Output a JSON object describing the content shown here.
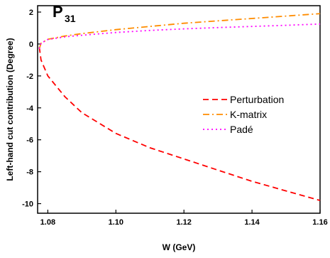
{
  "chart_data": {
    "type": "line",
    "title": "",
    "panel_label": {
      "main": "P",
      "sub": "31"
    },
    "xlabel": "W (GeV)",
    "ylabel": "Left-hand cut contribution (Degree)",
    "xlim": [
      1.077,
      1.16
    ],
    "ylim": [
      -10.6,
      2.4
    ],
    "x_ticks": [
      1.08,
      1.1,
      1.12,
      1.14,
      1.16
    ],
    "x_tick_labels": [
      "1.08",
      "1.10",
      "1.12",
      "1.14",
      "1.16"
    ],
    "y_ticks": [
      -10,
      -8,
      -6,
      -4,
      -2,
      0,
      2
    ],
    "y_tick_labels": [
      "-10",
      "-8",
      "-6",
      "-4",
      "-2",
      "0",
      "2"
    ],
    "grid": false,
    "legend_position": "right",
    "series": [
      {
        "name": "Perturbation",
        "color": "#ff0000",
        "dash": "dashed",
        "x": [
          1.0775,
          1.078,
          1.08,
          1.085,
          1.09,
          1.1,
          1.11,
          1.12,
          1.13,
          1.14,
          1.15,
          1.16
        ],
        "y": [
          -0.2,
          -1.0,
          -2.0,
          -3.3,
          -4.3,
          -5.6,
          -6.5,
          -7.2,
          -7.9,
          -8.6,
          -9.2,
          -9.8
        ]
      },
      {
        "name": "K-matrix",
        "color": "#ff8c00",
        "dash": "dashdot",
        "x": [
          1.0775,
          1.078,
          1.08,
          1.085,
          1.09,
          1.1,
          1.11,
          1.12,
          1.13,
          1.14,
          1.15,
          1.16
        ],
        "y": [
          -0.3,
          0.05,
          0.3,
          0.5,
          0.65,
          0.9,
          1.1,
          1.3,
          1.45,
          1.6,
          1.75,
          1.9
        ]
      },
      {
        "name": "Padé",
        "color": "#ff00ff",
        "dash": "dotted",
        "x": [
          1.0775,
          1.078,
          1.08,
          1.085,
          1.09,
          1.1,
          1.11,
          1.12,
          1.13,
          1.14,
          1.15,
          1.16
        ],
        "y": [
          -0.3,
          0.05,
          0.28,
          0.45,
          0.55,
          0.72,
          0.85,
          0.95,
          1.03,
          1.1,
          1.17,
          1.25
        ]
      }
    ]
  }
}
